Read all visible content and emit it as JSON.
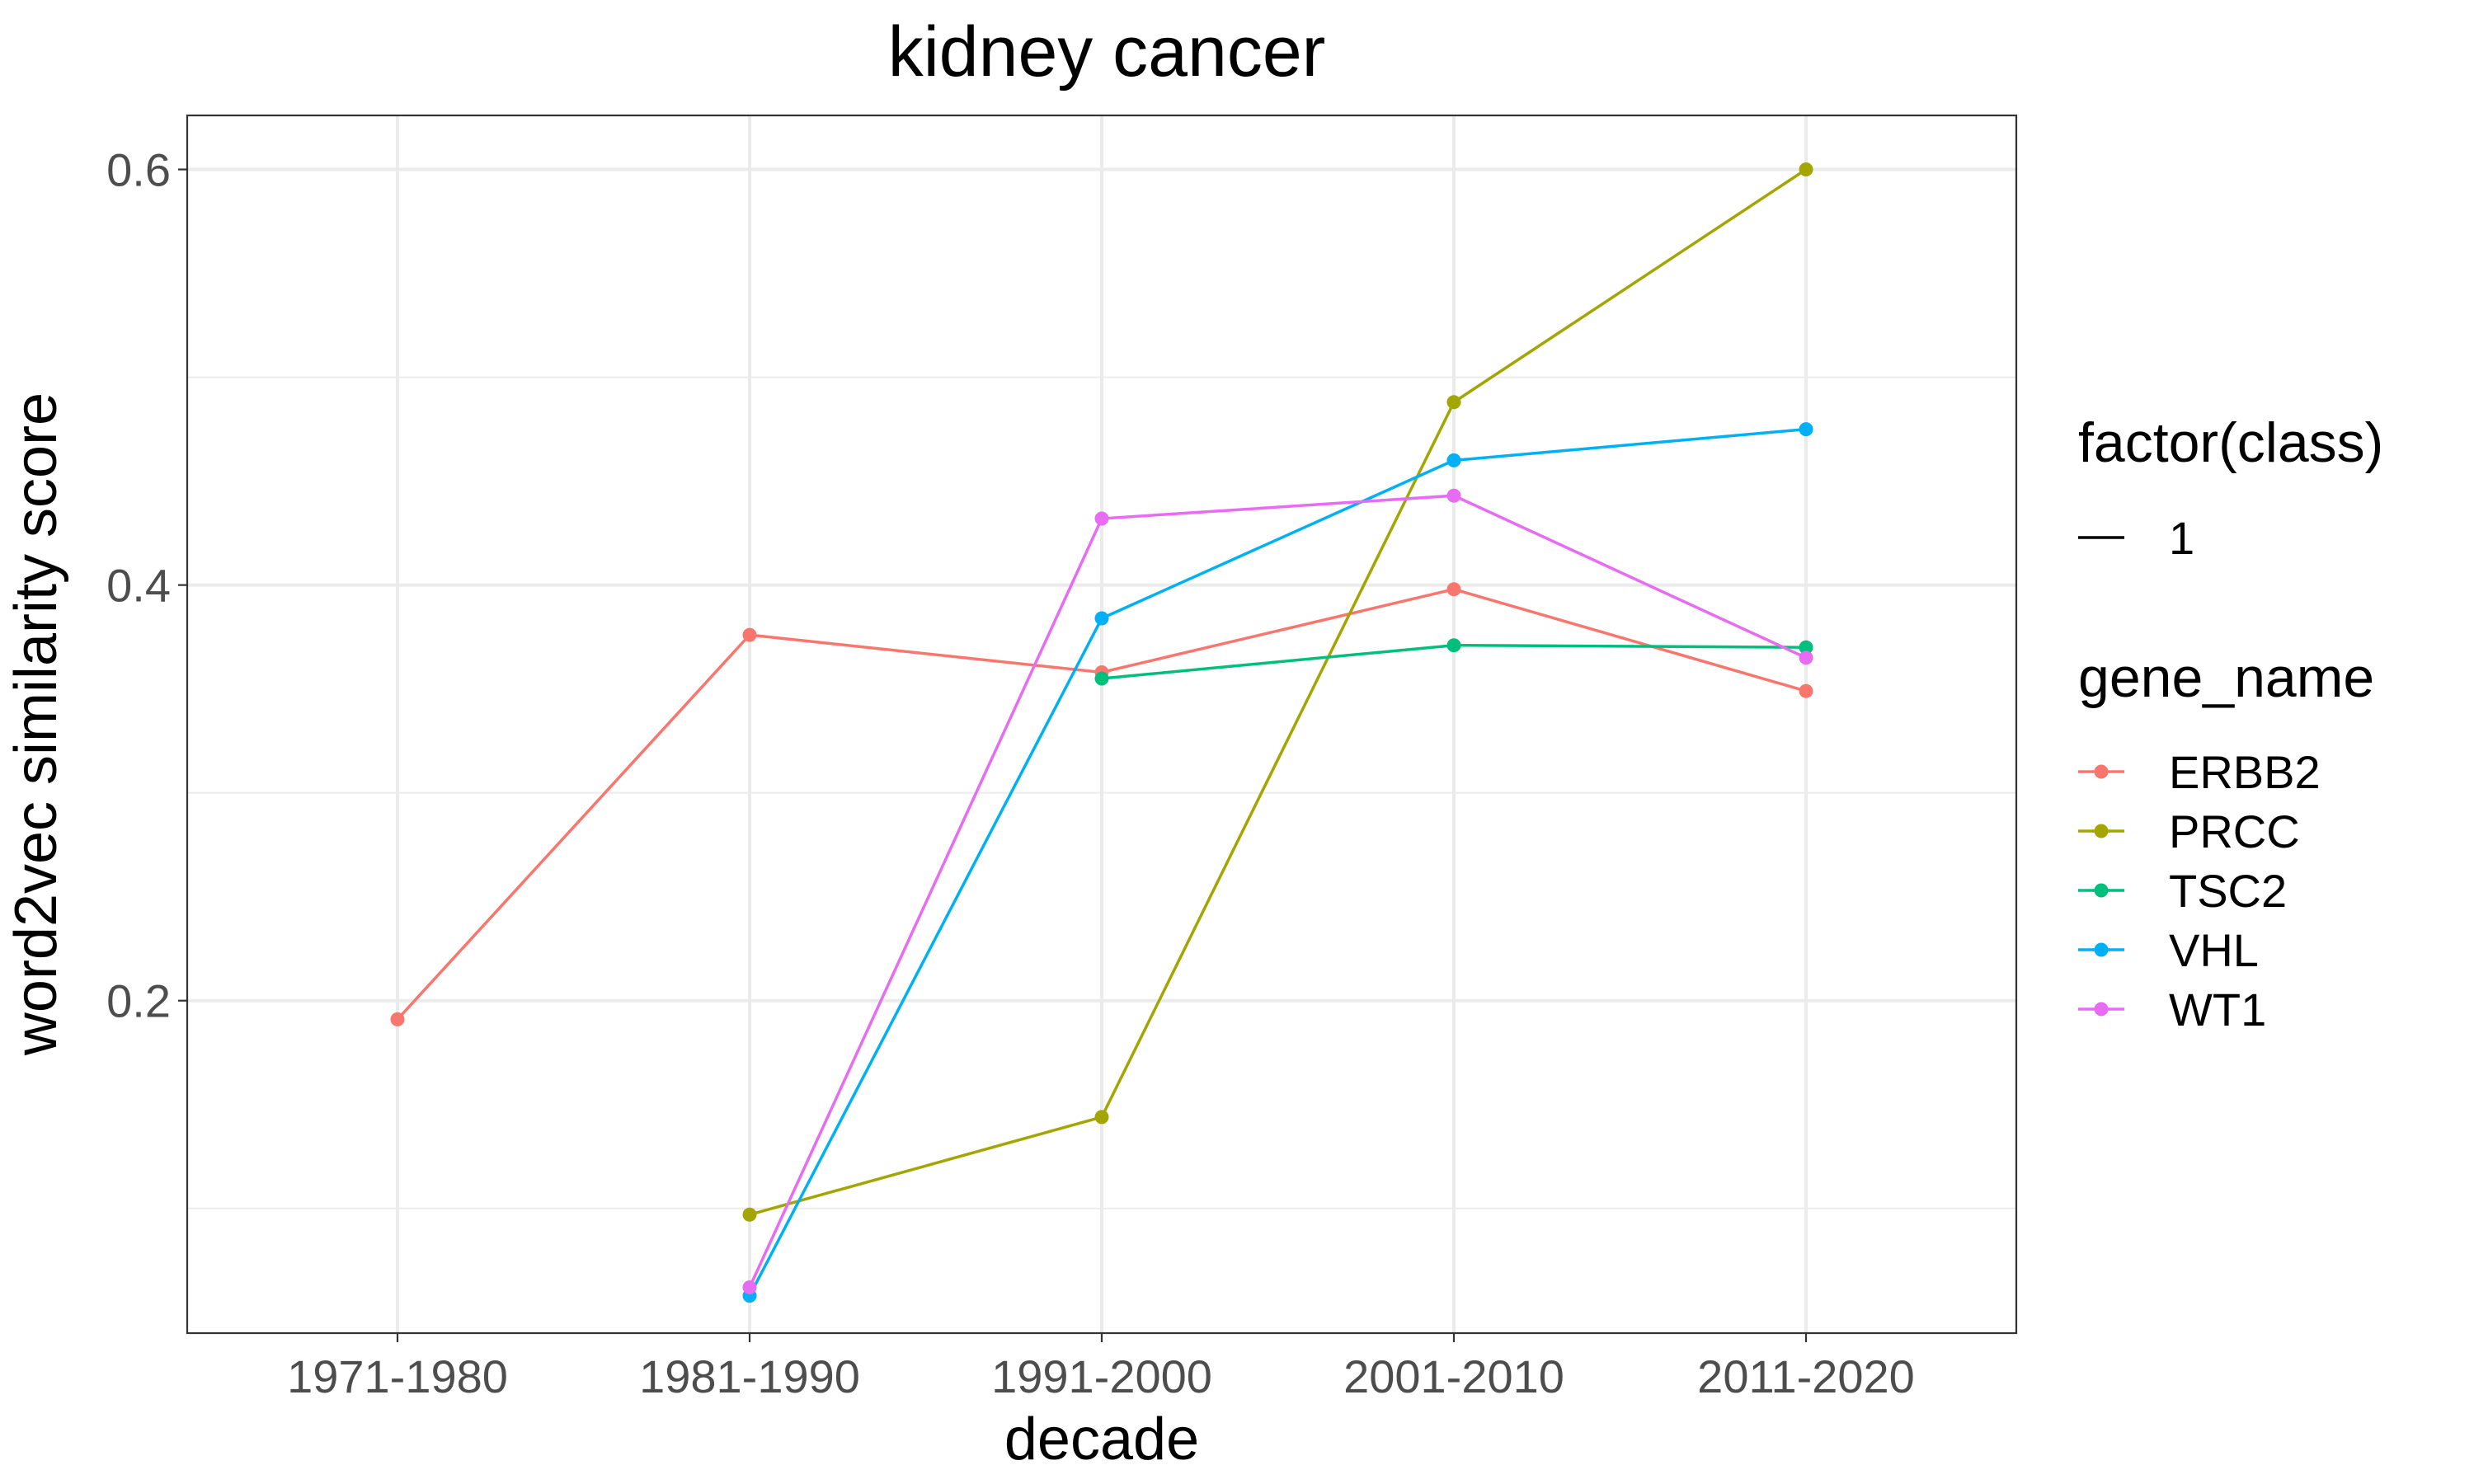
{
  "chart_data": {
    "type": "line",
    "title": "kidney cancer",
    "xlabel": "decade",
    "ylabel": "word2vec similarity score",
    "categories": [
      "1971-1980",
      "1981-1990",
      "1991-2000",
      "2001-2010",
      "2011-2020"
    ],
    "ylim": [
      0.04,
      0.626
    ],
    "y_ticks": [
      0.2,
      0.4,
      0.6
    ],
    "y_tick_labels": [
      "0.2",
      "0.4",
      "0.6"
    ],
    "y_minor_ticks": [
      0.1,
      0.3,
      0.5
    ],
    "grid": true,
    "legend_placement": "right",
    "legends": [
      {
        "title": "factor(class)",
        "entries": [
          {
            "label": "1",
            "color": "#000000",
            "point": false
          }
        ]
      },
      {
        "title": "gene_name",
        "entries": [
          {
            "label": "ERBB2",
            "color": "#F8766D",
            "point": true
          },
          {
            "label": "PRCC",
            "color": "#A3A500",
            "point": true
          },
          {
            "label": "TSC2",
            "color": "#00BF7D",
            "point": true
          },
          {
            "label": "VHL",
            "color": "#00B0F6",
            "point": true
          },
          {
            "label": "WT1",
            "color": "#E76BF3",
            "point": true
          }
        ]
      }
    ],
    "series": [
      {
        "name": "ERBB2",
        "color": "#F8766D",
        "values": [
          0.191,
          0.376,
          0.358,
          0.398,
          0.349
        ]
      },
      {
        "name": "PRCC",
        "color": "#A3A500",
        "values": [
          null,
          0.097,
          0.144,
          0.488,
          0.6
        ]
      },
      {
        "name": "TSC2",
        "color": "#00BF7D",
        "values": [
          null,
          null,
          0.355,
          0.371,
          0.37
        ]
      },
      {
        "name": "VHL",
        "color": "#00B0F6",
        "values": [
          null,
          0.058,
          0.384,
          0.46,
          0.475
        ]
      },
      {
        "name": "WT1",
        "color": "#E76BF3",
        "values": [
          null,
          0.062,
          0.432,
          0.443,
          0.365
        ]
      }
    ]
  }
}
